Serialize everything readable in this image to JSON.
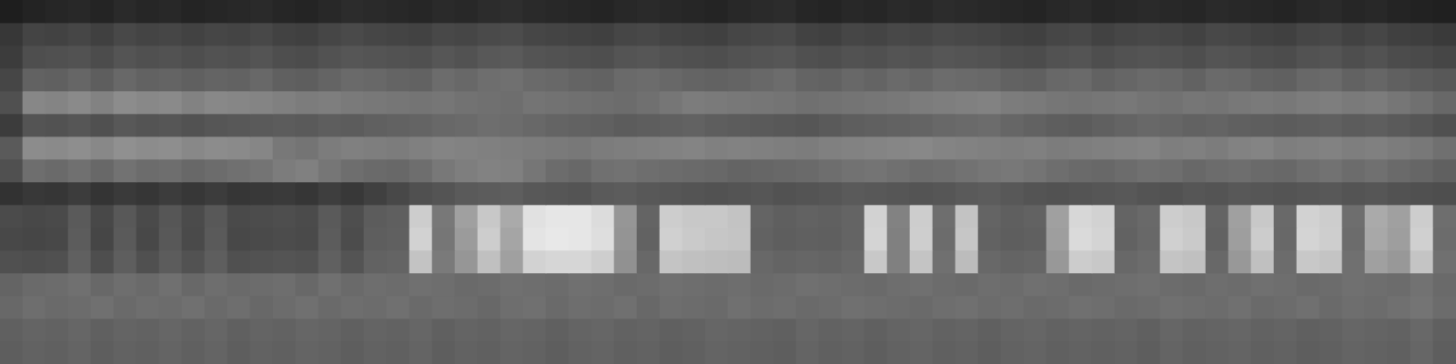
{
  "chart_data": {
    "type": "heatmap",
    "color": "gray",
    "zlim": [
      0,
      255
    ],
    "tick_labels": false,
    "grid": false,
    "cells": [
      [
        30,
        35,
        38,
        40,
        36,
        42,
        38,
        40,
        36,
        38,
        40,
        42,
        38,
        36,
        40,
        44,
        42,
        40,
        38,
        42,
        40,
        44,
        46,
        42,
        40,
        38,
        36,
        40,
        42,
        40,
        38,
        36,
        40,
        42,
        44,
        38,
        36,
        40,
        38,
        42,
        40,
        44,
        42,
        40,
        38,
        36,
        40,
        42,
        38,
        40,
        42,
        40,
        38,
        42,
        40,
        38,
        36,
        40,
        42,
        38,
        40,
        36,
        34,
        32
      ],
      [
        55,
        68,
        66,
        70,
        64,
        72,
        68,
        70,
        66,
        70,
        68,
        72,
        66,
        64,
        70,
        74,
        70,
        68,
        66,
        72,
        70,
        74,
        76,
        70,
        68,
        66,
        64,
        70,
        72,
        68,
        66,
        64,
        70,
        72,
        74,
        66,
        64,
        70,
        68,
        72,
        70,
        74,
        72,
        70,
        66,
        64,
        70,
        72,
        66,
        70,
        72,
        70,
        66,
        72,
        70,
        66,
        64,
        70,
        72,
        66,
        70,
        64,
        62,
        58
      ],
      [
        60,
        78,
        80,
        82,
        76,
        84,
        80,
        82,
        78,
        82,
        80,
        84,
        78,
        76,
        82,
        86,
        84,
        82,
        80,
        86,
        82,
        88,
        90,
        84,
        82,
        80,
        78,
        84,
        86,
        82,
        80,
        78,
        82,
        84,
        86,
        80,
        78,
        82,
        80,
        84,
        82,
        86,
        84,
        82,
        78,
        76,
        82,
        84,
        78,
        82,
        84,
        82,
        78,
        84,
        82,
        78,
        76,
        82,
        84,
        78,
        82,
        76,
        74,
        70
      ],
      [
        70,
        98,
        96,
        102,
        94,
        104,
        98,
        100,
        96,
        100,
        98,
        104,
        96,
        94,
        100,
        106,
        104,
        100,
        98,
        108,
        104,
        110,
        112,
        106,
        104,
        100,
        98,
        106,
        108,
        104,
        100,
        98,
        100,
        104,
        108,
        100,
        98,
        104,
        100,
        106,
        102,
        108,
        106,
        104,
        98,
        96,
        104,
        106,
        98,
        102,
        106,
        104,
        98,
        106,
        104,
        98,
        96,
        104,
        106,
        98,
        102,
        96,
        92,
        88
      ],
      [
        80,
        135,
        132,
        138,
        130,
        140,
        136,
        138,
        130,
        136,
        134,
        132,
        128,
        124,
        126,
        122,
        120,
        118,
        116,
        118,
        114,
        112,
        110,
        116,
        114,
        112,
        110,
        108,
        112,
        118,
        124,
        122,
        120,
        118,
        116,
        112,
        114,
        116,
        118,
        120,
        124,
        126,
        128,
        130,
        124,
        122,
        118,
        116,
        118,
        120,
        116,
        114,
        118,
        116,
        120,
        122,
        120,
        124,
        126,
        122,
        124,
        118,
        112,
        104
      ],
      [
        60,
        84,
        82,
        86,
        80,
        88,
        84,
        86,
        82,
        86,
        88,
        90,
        92,
        90,
        94,
        92,
        96,
        98,
        100,
        104,
        106,
        110,
        108,
        104,
        100,
        98,
        96,
        92,
        94,
        96,
        98,
        94,
        92,
        90,
        88,
        86,
        90,
        94,
        96,
        98,
        100,
        104,
        106,
        108,
        102,
        98,
        94,
        92,
        96,
        100,
        104,
        102,
        98,
        100,
        96,
        94,
        92,
        94,
        96,
        92,
        94,
        90,
        86,
        80
      ],
      [
        90,
        140,
        138,
        142,
        136,
        144,
        140,
        142,
        136,
        140,
        138,
        134,
        120,
        116,
        124,
        128,
        126,
        124,
        128,
        132,
        130,
        128,
        126,
        124,
        122,
        120,
        124,
        126,
        128,
        130,
        132,
        128,
        130,
        128,
        126,
        124,
        128,
        130,
        132,
        134,
        136,
        132,
        130,
        128,
        126,
        128,
        124,
        126,
        128,
        130,
        132,
        126,
        128,
        124,
        130,
        132,
        126,
        128,
        130,
        126,
        128,
        124,
        120,
        112
      ],
      [
        80,
        110,
        106,
        112,
        104,
        114,
        108,
        110,
        104,
        108,
        112,
        116,
        124,
        128,
        118,
        110,
        106,
        104,
        110,
        120,
        126,
        130,
        128,
        118,
        108,
        104,
        112,
        114,
        110,
        108,
        106,
        104,
        100,
        102,
        104,
        106,
        110,
        114,
        116,
        112,
        108,
        110,
        114,
        118,
        120,
        116,
        110,
        106,
        104,
        108,
        112,
        110,
        104,
        108,
        110,
        106,
        104,
        110,
        114,
        108,
        112,
        106,
        102,
        96
      ],
      [
        50,
        56,
        54,
        60,
        52,
        58,
        54,
        60,
        55,
        60,
        54,
        56,
        58,
        54,
        62,
        56,
        64,
        72,
        80,
        84,
        90,
        92,
        94,
        88,
        86,
        84,
        90,
        92,
        88,
        86,
        84,
        82,
        84,
        86,
        82,
        84,
        86,
        90,
        88,
        86,
        84,
        86,
        90,
        92,
        88,
        84,
        82,
        84,
        86,
        88,
        84,
        82,
        86,
        84,
        88,
        86,
        84,
        86,
        88,
        84,
        86,
        82,
        80,
        78
      ],
      [
        75,
        72,
        74,
        90,
        72,
        88,
        74,
        86,
        75,
        88,
        74,
        76,
        78,
        75,
        90,
        78,
        92,
        95,
        205,
        120,
        160,
        200,
        170,
        225,
        230,
        230,
        220,
        150,
        100,
        205,
        200,
        200,
        195,
        100,
        95,
        98,
        96,
        100,
        210,
        130,
        205,
        110,
        195,
        100,
        95,
        98,
        160,
        215,
        210,
        100,
        105,
        205,
        200,
        100,
        160,
        200,
        105,
        210,
        205,
        110,
        170,
        160,
        205,
        110
      ],
      [
        72,
        70,
        72,
        92,
        70,
        90,
        72,
        88,
        74,
        90,
        72,
        74,
        76,
        74,
        92,
        76,
        94,
        96,
        210,
        118,
        155,
        205,
        165,
        228,
        232,
        230,
        222,
        148,
        98,
        208,
        202,
        198,
        196,
        98,
        94,
        96,
        95,
        100,
        212,
        128,
        206,
        108,
        198,
        98,
        94,
        96,
        158,
        218,
        212,
        98,
        104,
        208,
        202,
        98,
        158,
        204,
        104,
        212,
        206,
        108,
        168,
        158,
        208,
        108
      ],
      [
        80,
        78,
        80,
        96,
        78,
        94,
        80,
        92,
        82,
        94,
        80,
        82,
        84,
        82,
        96,
        84,
        98,
        100,
        195,
        122,
        150,
        192,
        160,
        210,
        214,
        214,
        206,
        145,
        104,
        196,
        192,
        190,
        188,
        104,
        100,
        102,
        100,
        104,
        200,
        128,
        196,
        112,
        188,
        104,
        100,
        102,
        152,
        204,
        200,
        104,
        108,
        196,
        192,
        104,
        152,
        192,
        108,
        200,
        196,
        112,
        160,
        152,
        196,
        112
      ],
      [
        100,
        106,
        108,
        112,
        104,
        110,
        106,
        112,
        104,
        110,
        106,
        108,
        110,
        104,
        112,
        106,
        110,
        108,
        112,
        110,
        106,
        108,
        112,
        110,
        108,
        112,
        110,
        106,
        108,
        112,
        110,
        108,
        110,
        106,
        108,
        112,
        110,
        108,
        106,
        110,
        112,
        108,
        106,
        110,
        108,
        112,
        110,
        106,
        108,
        110,
        112,
        108,
        106,
        110,
        108,
        112,
        110,
        106,
        108,
        112,
        110,
        108,
        114,
        106
      ],
      [
        104,
        110,
        106,
        108,
        112,
        106,
        110,
        108,
        112,
        106,
        110,
        104,
        108,
        112,
        106,
        110,
        108,
        112,
        106,
        110,
        108,
        104,
        110,
        112,
        106,
        110,
        108,
        112,
        104,
        110,
        108,
        106,
        112,
        108,
        110,
        106,
        108,
        112,
        110,
        108,
        106,
        110,
        112,
        108,
        110,
        106,
        108,
        112,
        110,
        106,
        108,
        112,
        110,
        108,
        112,
        106,
        108,
        112,
        106,
        110,
        108,
        112,
        116,
        108
      ],
      [
        96,
        100,
        98,
        102,
        96,
        100,
        98,
        102,
        98,
        102,
        96,
        100,
        98,
        102,
        100,
        96,
        100,
        98,
        102,
        96,
        100,
        98,
        102,
        100,
        96,
        100,
        102,
        98,
        100,
        96,
        98,
        102,
        100,
        98,
        96,
        102,
        98,
        100,
        96,
        100,
        102,
        98,
        100,
        96,
        100,
        102,
        98,
        100,
        98,
        100,
        96,
        102,
        98,
        100,
        102,
        98,
        100,
        96,
        98,
        102,
        100,
        98,
        104,
        96
      ],
      [
        94,
        98,
        96,
        100,
        94,
        98,
        96,
        100,
        96,
        100,
        94,
        98,
        96,
        100,
        98,
        94,
        98,
        96,
        100,
        94,
        98,
        96,
        100,
        98,
        94,
        98,
        100,
        96,
        98,
        94,
        96,
        100,
        98,
        96,
        94,
        100,
        96,
        98,
        94,
        98,
        100,
        96,
        98,
        94,
        98,
        100,
        96,
        98,
        96,
        98,
        94,
        100,
        96,
        98,
        100,
        96,
        98,
        94,
        96,
        100,
        98,
        96,
        102,
        94
      ]
    ]
  }
}
